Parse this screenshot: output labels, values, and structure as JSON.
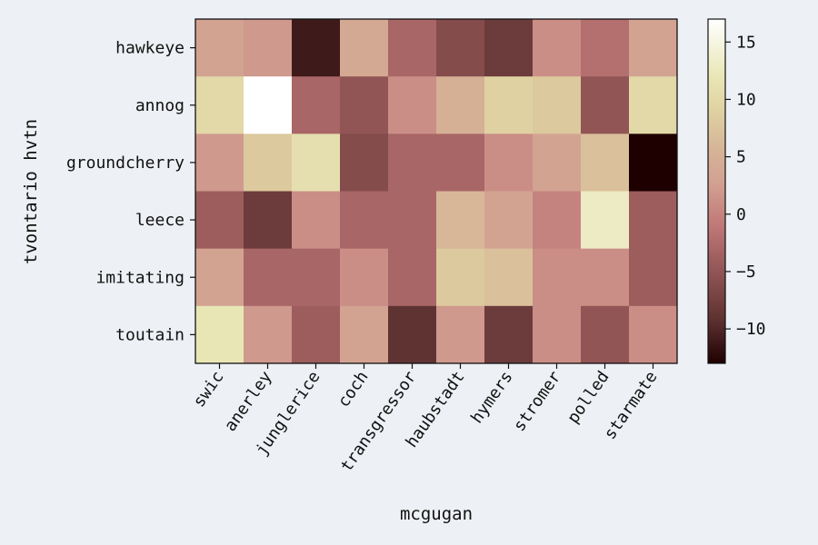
{
  "chart_data": {
    "type": "heatmap",
    "xlabel": "mcgugan",
    "ylabel": "tvontario hvtn",
    "x_categories": [
      "swic",
      "anerley",
      "junglerice",
      "coch",
      "transgressor",
      "haubstadt",
      "hymers",
      "stromer",
      "polled",
      "starmate"
    ],
    "y_categories": [
      "hawkeye",
      "annog",
      "groundcherry",
      "leece",
      "imitating",
      "toutain"
    ],
    "values": [
      [
        3,
        2,
        -11,
        4,
        -3,
        -6,
        -8,
        1,
        -2,
        3
      ],
      [
        10,
        17,
        -3,
        -5,
        1,
        5,
        9,
        8,
        -5,
        10
      ],
      [
        2,
        8,
        11,
        -6,
        -3,
        -3,
        1,
        3,
        7,
        -13
      ],
      [
        -4,
        -8,
        1,
        -3,
        -3,
        6,
        3,
        0,
        13,
        -4
      ],
      [
        3,
        -3,
        -3,
        1,
        -3,
        8,
        7,
        1,
        1,
        -4
      ],
      [
        12,
        2,
        -4,
        3,
        -9,
        2,
        -8,
        1,
        -5,
        1
      ]
    ],
    "colorbar": {
      "min": -13,
      "max": 17,
      "ticks": [
        -10,
        -5,
        0,
        5,
        10,
        15
      ]
    },
    "grid": false,
    "legend": "colorbar-right"
  }
}
